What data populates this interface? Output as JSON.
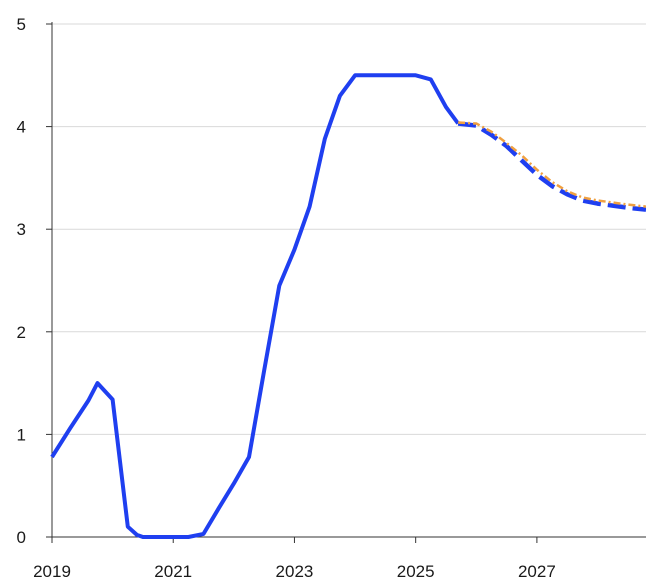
{
  "chart_data": {
    "type": "line",
    "title": "",
    "xlabel": "",
    "ylabel": "",
    "xlim": [
      2019.0,
      2028.8
    ],
    "ylim": [
      0,
      5
    ],
    "grid": {
      "horizontal": true,
      "vertical": false
    },
    "x_ticks": [
      {
        "value": 2019,
        "label": "2019"
      },
      {
        "value": 2021,
        "label": "2021"
      },
      {
        "value": 2023,
        "label": "2023"
      },
      {
        "value": 2025,
        "label": "2025"
      },
      {
        "value": 2027,
        "label": "2027"
      }
    ],
    "y_ticks": [
      {
        "value": 0,
        "label": "0"
      },
      {
        "value": 1,
        "label": "1"
      },
      {
        "value": 2,
        "label": "2"
      },
      {
        "value": 3,
        "label": "3"
      },
      {
        "value": 4,
        "label": "4"
      },
      {
        "value": 5,
        "label": "5"
      }
    ],
    "series": [
      {
        "style": "solid",
        "color": "#1f3ff0",
        "points": [
          [
            2019.0,
            0.78
          ],
          [
            2019.3,
            1.06
          ],
          [
            2019.6,
            1.33
          ],
          [
            2019.75,
            1.5
          ],
          [
            2020.0,
            1.34
          ],
          [
            2020.25,
            0.1
          ],
          [
            2020.4,
            0.02
          ],
          [
            2020.5,
            0.0
          ],
          [
            2021.25,
            0.0
          ],
          [
            2021.5,
            0.03
          ],
          [
            2021.75,
            0.28
          ],
          [
            2022.0,
            0.52
          ],
          [
            2022.25,
            0.78
          ],
          [
            2022.5,
            1.62
          ],
          [
            2022.75,
            2.45
          ],
          [
            2023.0,
            2.8
          ],
          [
            2023.25,
            3.22
          ],
          [
            2023.5,
            3.88
          ],
          [
            2023.75,
            4.3
          ],
          [
            2024.0,
            4.5
          ],
          [
            2024.25,
            4.5
          ],
          [
            2025.0,
            4.5
          ],
          [
            2025.25,
            4.46
          ],
          [
            2025.5,
            4.19
          ],
          [
            2025.7,
            4.03
          ]
        ]
      },
      {
        "style": "dashed",
        "color": "#1f3ff0",
        "points": [
          [
            2025.7,
            4.03
          ],
          [
            2026.0,
            4.01
          ],
          [
            2026.25,
            3.92
          ],
          [
            2026.5,
            3.81
          ],
          [
            2026.75,
            3.67
          ],
          [
            2027.0,
            3.53
          ],
          [
            2027.25,
            3.42
          ],
          [
            2027.5,
            3.34
          ],
          [
            2027.75,
            3.28
          ],
          [
            2028.0,
            3.25
          ],
          [
            2028.25,
            3.23
          ],
          [
            2028.5,
            3.21
          ],
          [
            2028.8,
            3.19
          ]
        ]
      },
      {
        "style": "dash-dot",
        "color": "#f0a040",
        "points": [
          [
            2025.7,
            4.04
          ],
          [
            2026.0,
            4.03
          ],
          [
            2026.25,
            3.95
          ],
          [
            2026.5,
            3.84
          ],
          [
            2026.75,
            3.72
          ],
          [
            2027.0,
            3.58
          ],
          [
            2027.25,
            3.46
          ],
          [
            2027.5,
            3.37
          ],
          [
            2027.75,
            3.31
          ],
          [
            2028.0,
            3.28
          ],
          [
            2028.25,
            3.26
          ],
          [
            2028.5,
            3.24
          ],
          [
            2028.8,
            3.22
          ]
        ]
      }
    ]
  }
}
